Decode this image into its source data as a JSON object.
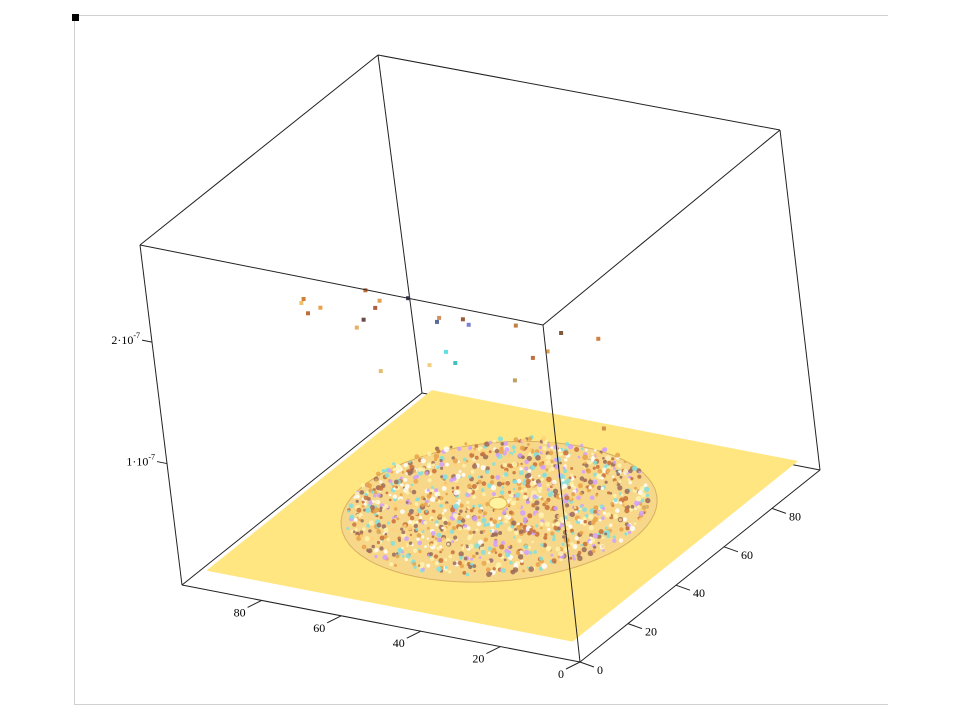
{
  "chart_data": {
    "type": "surface3d",
    "title": "",
    "description_axes": {
      "x_axis_ticks": [
        "80",
        "60",
        "40",
        "20",
        "0"
      ],
      "y_axis_ticks": [
        "0",
        "20",
        "40",
        "60",
        "80"
      ],
      "z_axis_ticks": [
        {
          "mantissa": "1·10",
          "exp": "-7",
          "value": 1e-07
        },
        {
          "mantissa": "2·10",
          "exp": "-7",
          "value": 2e-07
        }
      ]
    },
    "x_range": [
      0,
      100
    ],
    "y_range": [
      0,
      100
    ],
    "z_range": [
      0,
      2.8e-07
    ],
    "surface": {
      "base_color": "#ffe680",
      "disk_center": [
        50,
        50
      ],
      "disk_radius": 34,
      "disk_texture_colors": [
        "#fff4b0",
        "#ffd27a",
        "#e8a24a",
        "#c8703a",
        "#ffffff",
        "#9a6a5a",
        "#7fe0e0",
        "#d0a0ff"
      ]
    },
    "floating_points": [
      {
        "x": 52,
        "y": 12,
        "z": 2.55e-07,
        "color": "#c0703a"
      },
      {
        "x": 60,
        "y": 6,
        "z": 2.45e-07,
        "color": "#e8a24a"
      },
      {
        "x": 48,
        "y": 22,
        "z": 2.35e-07,
        "color": "#3a3a5a"
      },
      {
        "x": 66,
        "y": 10,
        "z": 2.3e-07,
        "color": "#c0703a"
      },
      {
        "x": 72,
        "y": 18,
        "z": 2.25e-07,
        "color": "#d08030"
      },
      {
        "x": 58,
        "y": 26,
        "z": 2.2e-07,
        "color": "#e0a050"
      },
      {
        "x": 40,
        "y": 30,
        "z": 2.1e-07,
        "color": "#9a5a3a"
      },
      {
        "x": 62,
        "y": 30,
        "z": 2.05e-07,
        "color": "#b06040"
      },
      {
        "x": 78,
        "y": 26,
        "z": 2.05e-07,
        "color": "#f0c070"
      },
      {
        "x": 50,
        "y": 36,
        "z": 1.95e-07,
        "color": "#d09060"
      },
      {
        "x": 44,
        "y": 38,
        "z": 1.9e-07,
        "color": "#8080d0"
      },
      {
        "x": 68,
        "y": 34,
        "z": 1.85e-07,
        "color": "#6a4a4a"
      },
      {
        "x": 36,
        "y": 44,
        "z": 1.85e-07,
        "color": "#c08040"
      },
      {
        "x": 56,
        "y": 44,
        "z": 1.75e-07,
        "color": "#5a6a9a"
      },
      {
        "x": 30,
        "y": 52,
        "z": 1.7e-07,
        "color": "#7a5a3a"
      },
      {
        "x": 74,
        "y": 40,
        "z": 1.65e-07,
        "color": "#e8b060"
      },
      {
        "x": 26,
        "y": 60,
        "z": 1.55e-07,
        "color": "#d08040"
      },
      {
        "x": 38,
        "y": 58,
        "z": 1.4e-07,
        "color": "#e0a050"
      },
      {
        "x": 60,
        "y": 52,
        "z": 1.35e-07,
        "color": "#60e0e0"
      },
      {
        "x": 46,
        "y": 64,
        "z": 1.2e-07,
        "color": "#c07040"
      },
      {
        "x": 62,
        "y": 58,
        "z": 1.15e-07,
        "color": "#40c0c0"
      },
      {
        "x": 70,
        "y": 60,
        "z": 1.05e-07,
        "color": "#f0d080"
      },
      {
        "x": 54,
        "y": 68,
        "z": 9e-08,
        "color": "#c0a060"
      },
      {
        "x": 80,
        "y": 56,
        "z": 1e-07,
        "color": "#e0c070"
      },
      {
        "x": 34,
        "y": 70,
        "z": 6e-08,
        "color": "#d09050"
      }
    ]
  }
}
